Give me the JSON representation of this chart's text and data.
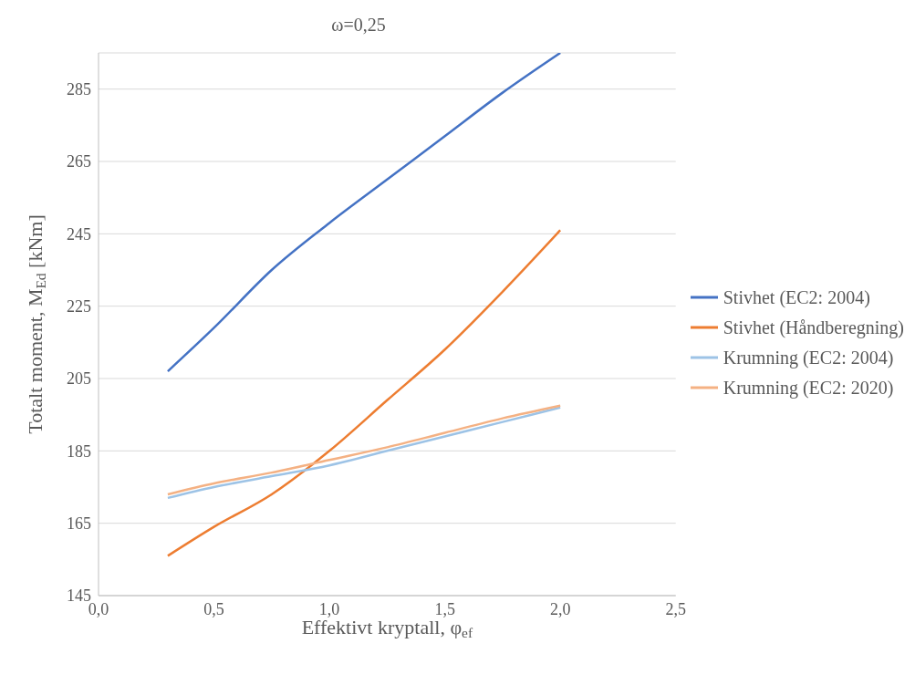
{
  "chart_data": {
    "type": "line",
    "title": "ω=0,25",
    "xlabel": "Effektivt kryptall, φ$_{ef}$",
    "ylabel": "Totalt moment, M$_{Ed}$ [kNm]",
    "x": [
      0.3,
      0.5,
      0.75,
      1.0,
      1.25,
      1.5,
      1.75,
      2.0
    ],
    "series": [
      {
        "name": "Stivhet (EC2: 2004)",
        "color": "#4472c4",
        "values": [
          207,
          219,
          235,
          248,
          260,
          272,
          284,
          295
        ]
      },
      {
        "name": "Stivhet (Håndberegning)",
        "color": "#ed7d31",
        "values": [
          156,
          164,
          173,
          185,
          199,
          213,
          229,
          246
        ]
      },
      {
        "name": "Krumning (EC2: 2004)",
        "color": "#9dc3e6",
        "values": [
          172,
          175,
          178,
          181,
          185,
          189,
          193,
          197
        ]
      },
      {
        "name": "Krumning (EC2: 2020)",
        "color": "#f4b183",
        "values": [
          173,
          176,
          179,
          182.5,
          186,
          190,
          194,
          197.5
        ]
      }
    ],
    "xlim": [
      0,
      2.5
    ],
    "xticks": [
      {
        "value": 0,
        "label": "0,0"
      },
      {
        "value": 0.5,
        "label": "0,5"
      },
      {
        "value": 1,
        "label": "1,0"
      },
      {
        "value": 1.5,
        "label": "1,5"
      },
      {
        "value": 2,
        "label": "2,0"
      },
      {
        "value": 2.5,
        "label": "2,5"
      }
    ],
    "ylim": [
      145,
      295
    ],
    "yticks": [
      145,
      165,
      185,
      205,
      225,
      245,
      265,
      285
    ],
    "grid": "y",
    "legend": "right",
    "marker": "none",
    "line_style": "solid"
  }
}
